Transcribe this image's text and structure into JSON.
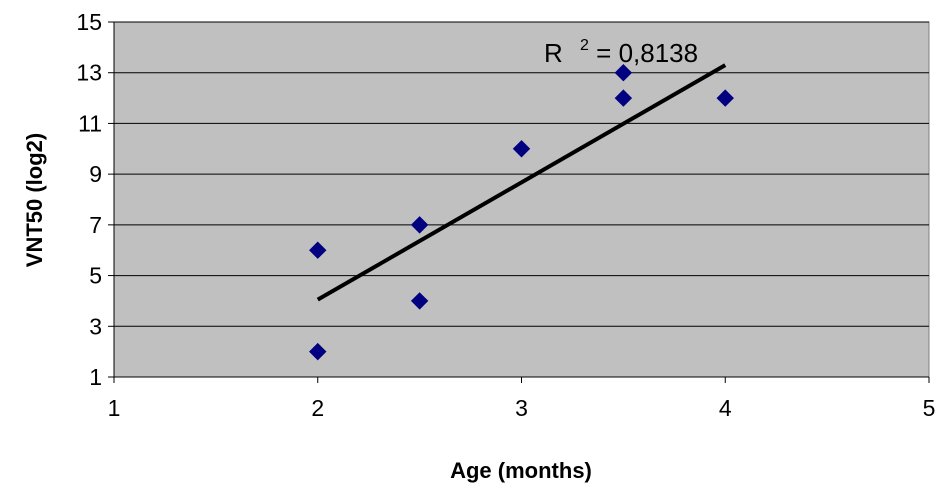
{
  "chart_data": {
    "type": "scatter",
    "xlabel": "Age (months)",
    "ylabel": "VNT50 (log2)",
    "xlim": [
      1,
      5
    ],
    "ylim": [
      1,
      15
    ],
    "x_ticks": [
      "1",
      "2",
      "3",
      "4",
      "5"
    ],
    "y_ticks": [
      "1",
      "3",
      "5",
      "7",
      "9",
      "11",
      "13",
      "15"
    ],
    "grid": "horizontal",
    "plot_background": "#c0c0c0",
    "marker_color": "#000080",
    "series": [
      {
        "marker": "diamond",
        "points": [
          {
            "x": 2,
            "y": 2
          },
          {
            "x": 2,
            "y": 6
          },
          {
            "x": 2.5,
            "y": 4
          },
          {
            "x": 2.5,
            "y": 7
          },
          {
            "x": 3,
            "y": 10
          },
          {
            "x": 3.5,
            "y": 12
          },
          {
            "x": 3.5,
            "y": 13
          },
          {
            "x": 4,
            "y": 12
          }
        ]
      }
    ],
    "trendline": {
      "type": "linear",
      "x": [
        2,
        4
      ],
      "y": [
        4.05,
        13.3
      ],
      "color": "#000000"
    },
    "annotation": {
      "r_label": "R",
      "r_exponent": "2",
      "r_value": " = 0,8138"
    }
  }
}
